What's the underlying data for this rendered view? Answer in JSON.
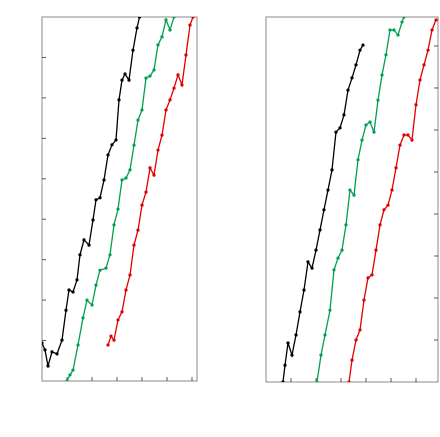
{
  "chart_data": [
    {
      "type": "line",
      "xlim": [
        0,
        6.2
      ],
      "ylim": [
        0,
        9
      ],
      "xticks": [
        1,
        2,
        3,
        4,
        5,
        6
      ],
      "yticks": [
        1,
        2,
        3,
        4,
        5,
        6,
        7,
        8
      ],
      "ytick_side": "left",
      "series": [
        {
          "color": "#000000",
          "x": [
            0,
            0.12,
            0.24,
            0.4,
            0.6,
            0.8,
            0.96,
            1.08,
            1.24,
            1.4,
            1.52,
            1.68,
            1.88,
            2.04,
            2.16,
            2.32,
            2.48,
            2.64,
            2.8,
            2.96,
            3.08,
            3.2,
            3.32,
            3.48,
            3.64,
            3.8,
            3.9
          ],
          "values": [
            0.94,
            0.77,
            0.37,
            0.72,
            0.67,
            1.01,
            1.75,
            2.25,
            2.2,
            2.5,
            3.12,
            3.49,
            3.36,
            3.98,
            4.48,
            4.53,
            4.97,
            5.59,
            5.84,
            5.96,
            6.95,
            7.44,
            7.59,
            7.44,
            8.18,
            8.73,
            9.0
          ]
        },
        {
          "color": "#00a050",
          "x": [
            1.0,
            1.12,
            1.24,
            1.44,
            1.64,
            1.8,
            2.0,
            2.16,
            2.32,
            2.56,
            2.72,
            2.88,
            3.04,
            3.2,
            3.36,
            3.52,
            3.68,
            3.84,
            4.0,
            4.16,
            4.32,
            4.48,
            4.64,
            4.8,
            4.96,
            5.12,
            5.28
          ],
          "values": [
            0,
            0.15,
            0.27,
            0.89,
            1.56,
            2.0,
            1.88,
            2.37,
            2.74,
            2.79,
            3.12,
            3.86,
            4.25,
            4.97,
            5.02,
            5.22,
            5.83,
            6.45,
            6.7,
            7.49,
            7.54,
            7.69,
            8.31,
            8.51,
            8.93,
            8.68,
            9.0
          ]
        },
        {
          "color": "#e00000",
          "x": [
            2.64,
            2.76,
            2.88,
            3.04,
            3.2,
            3.36,
            3.52,
            3.68,
            3.84,
            4.0,
            4.16,
            4.32,
            4.48,
            4.64,
            4.8,
            4.96,
            5.12,
            5.28,
            5.44,
            5.6,
            5.76,
            5.92,
            6.04
          ],
          "values": [
            0.89,
            1.11,
            1.01,
            1.51,
            1.71,
            2.25,
            2.62,
            3.36,
            3.73,
            4.35,
            4.67,
            5.27,
            5.09,
            5.71,
            6.08,
            6.7,
            6.95,
            7.24,
            7.57,
            7.32,
            8.06,
            8.8,
            9.0
          ]
        }
      ]
    },
    {
      "type": "line",
      "xlim": [
        0,
        6.88
      ],
      "ylim": [
        0,
        8.69
      ],
      "xticks": [
        1,
        2,
        3,
        4,
        5,
        6
      ],
      "yticks": [
        1,
        2,
        3,
        4,
        5,
        6,
        7,
        8
      ],
      "ytick_side": "right",
      "series": [
        {
          "color": "#000000",
          "x": [
            0.68,
            0.76,
            0.88,
            1.04,
            1.2,
            1.36,
            1.52,
            1.68,
            1.84,
            2.0,
            2.16,
            2.32,
            2.48,
            2.64,
            2.8,
            2.96,
            3.12,
            3.28,
            3.44,
            3.6,
            3.76,
            3.88
          ],
          "values": [
            0,
            0.4,
            0.93,
            0.64,
            1.12,
            1.67,
            2.19,
            2.86,
            2.71,
            3.14,
            3.62,
            4.1,
            4.57,
            5.05,
            5.95,
            6.05,
            6.36,
            6.95,
            7.24,
            7.55,
            7.9,
            8.02
          ]
        },
        {
          "color": "#00a050",
          "x": [
            2.04,
            2.2,
            2.36,
            2.56,
            2.72,
            2.88,
            3.04,
            3.2,
            3.36,
            3.52,
            3.68,
            3.84,
            4.0,
            4.16,
            4.32,
            4.48,
            4.64,
            4.8,
            4.96,
            5.12,
            5.28,
            5.44,
            5.52
          ],
          "values": [
            0,
            0.64,
            1.12,
            1.71,
            2.67,
            2.95,
            3.14,
            3.74,
            4.57,
            4.45,
            5.29,
            5.76,
            6.12,
            6.19,
            5.95,
            6.71,
            7.31,
            7.79,
            8.38,
            8.38,
            8.26,
            8.57,
            8.69
          ]
        },
        {
          "color": "#e00000",
          "x": [
            3.32,
            3.44,
            3.6,
            3.76,
            3.92,
            4.08,
            4.24,
            4.4,
            4.56,
            4.72,
            4.88,
            5.04,
            5.2,
            5.36,
            5.52,
            5.68,
            5.84,
            6.0,
            6.16,
            6.32,
            6.48,
            6.64,
            6.8
          ],
          "values": [
            0,
            0.52,
            1.0,
            1.24,
            1.95,
            2.48,
            2.55,
            3.14,
            3.74,
            4.1,
            4.21,
            4.57,
            5.1,
            5.64,
            5.88,
            5.88,
            5.76,
            6.6,
            7.19,
            7.55,
            7.9,
            8.38,
            8.62
          ]
        }
      ]
    }
  ]
}
